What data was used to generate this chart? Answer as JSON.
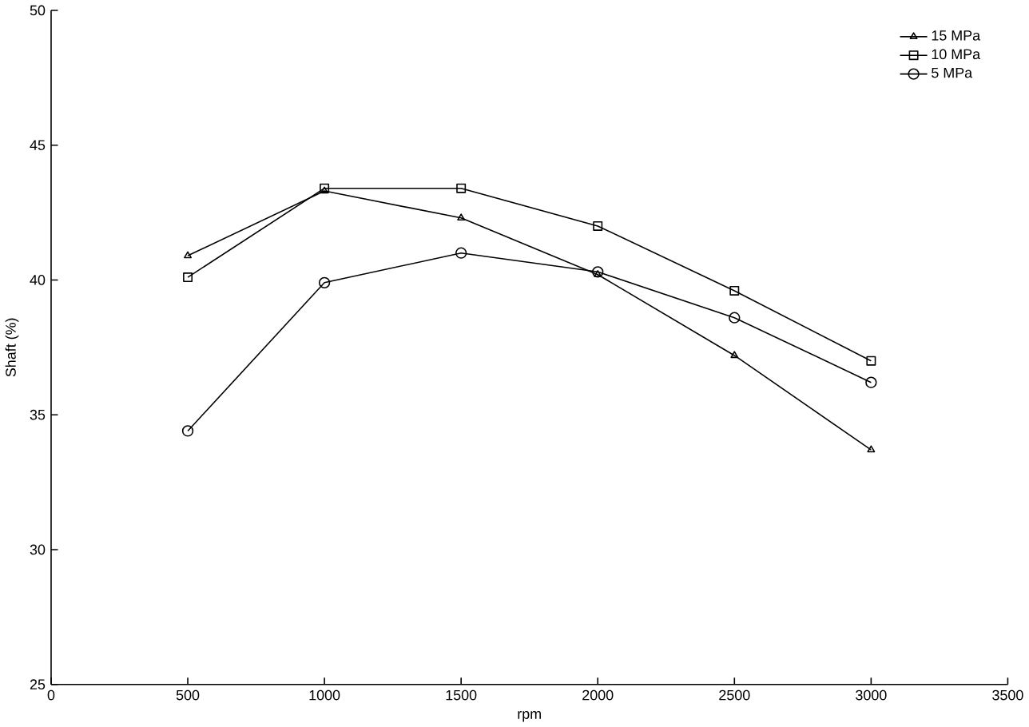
{
  "chart_data": {
    "type": "line",
    "xlabel": "rpm",
    "ylabel": "Shaft (%)",
    "xlim": [
      0,
      3500
    ],
    "ylim": [
      25,
      50
    ],
    "xticks": [
      0,
      500,
      1000,
      1500,
      2000,
      2500,
      3000,
      3500
    ],
    "yticks": [
      25,
      30,
      35,
      40,
      45,
      50
    ],
    "legend": "top right",
    "grid": false,
    "series": [
      {
        "name": "15 MPa",
        "color": "#000000",
        "marker": "triangle",
        "x": [
          500,
          1000,
          1500,
          2000,
          2500,
          3000
        ],
        "values": [
          40.9,
          43.3,
          42.3,
          40.2,
          37.2,
          33.7
        ]
      },
      {
        "name": "10 MPa",
        "color": "#000000",
        "marker": "square",
        "x": [
          500,
          1000,
          1500,
          2000,
          2500,
          3000
        ],
        "values": [
          40.1,
          43.4,
          43.4,
          42.0,
          39.6,
          37.0
        ]
      },
      {
        "name": "5 MPa",
        "color": "#000000",
        "marker": "circle",
        "x": [
          500,
          1000,
          1500,
          2000,
          2500,
          3000
        ],
        "values": [
          34.4,
          39.9,
          41.0,
          40.3,
          38.6,
          36.2
        ]
      }
    ]
  }
}
